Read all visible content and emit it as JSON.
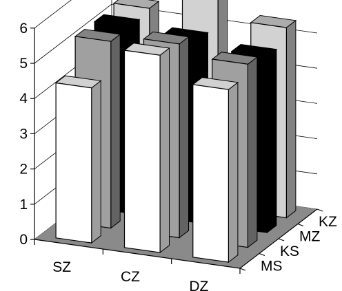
{
  "chart_data": {
    "type": "bar",
    "variant": "3d-column",
    "title": "",
    "xlabel": "",
    "ylabel": "",
    "ylim": [
      0,
      6
    ],
    "yticks": [
      "0",
      "1",
      "2",
      "3",
      "4",
      "5",
      "6"
    ],
    "grid": true,
    "legend": "none",
    "categories": [
      "SZ",
      "CZ",
      "DZ"
    ],
    "series": [
      {
        "name": "MS",
        "color": "#ffffff",
        "values": [
          4.4,
          5.6,
          4.9
        ]
      },
      {
        "name": "KS",
        "color": "#a0a0a0",
        "values": [
          5.3,
          5.5,
          5.2
        ]
      },
      {
        "name": "MZ",
        "color": "#000000",
        "values": [
          5.3,
          5.2,
          5.0
        ]
      },
      {
        "name": "KZ",
        "color": "#d2d2d2",
        "values": [
          5.4,
          6.0,
          5.4
        ]
      }
    ]
  }
}
